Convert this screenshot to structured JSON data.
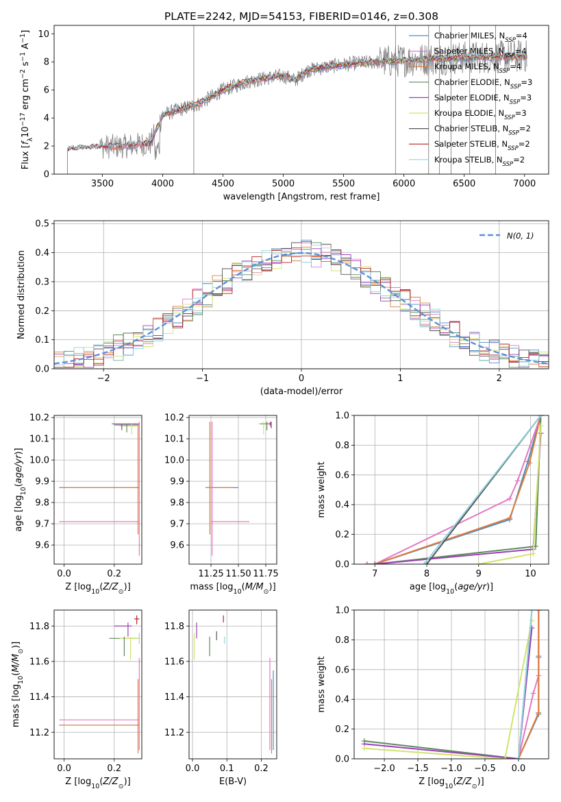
{
  "figure_title": "PLATE=2242, MJD=54153, FIBERID=0146, z=0.308",
  "colors": {
    "Chabrier MILES": "#4a8dbf",
    "Salpeter MILES": "#e377c2",
    "Kroupa MILES": "#e07b39",
    "Chabrier ELODIE": "#5a8a5a",
    "Salpeter ELODIE": "#9b3fb5",
    "Kroupa ELODIE": "#cfe36a",
    "Chabrier STELIB": "#555555",
    "Salpeter STELIB": "#b22222",
    "Kroupa STELIB": "#8fd3e0",
    "data": "#808080",
    "normal": "#5b8fd8"
  },
  "chart_data": [
    {
      "id": "spectrum",
      "type": "line",
      "xlabel": "wavelength [Angstrom, rest frame]",
      "ylabel": "Flux [f_λ 10^-17 erg cm^-2 s^-1 A^-1]",
      "xlim": [
        3100,
        7200
      ],
      "ylim": [
        0,
        10.6
      ],
      "xticks": [
        3500,
        4000,
        4500,
        5000,
        5500,
        6000,
        6500,
        7000
      ],
      "yticks": [
        0,
        2,
        4,
        6,
        8,
        10
      ],
      "legend_position": "upper right",
      "legend": [
        {
          "pre": "Chabrier MILES, N",
          "sub": "SSP",
          "post": "=4"
        },
        {
          "pre": "Salpeter MILES, N",
          "sub": "SSP",
          "post": "=4"
        },
        {
          "pre": "Kroupa MILES, N",
          "sub": "SSP",
          "post": "=4"
        },
        {
          "pre": "Chabrier ELODIE, N",
          "sub": "SSP",
          "post": "=3"
        },
        {
          "pre": "Salpeter ELODIE, N",
          "sub": "SSP",
          "post": "=3"
        },
        {
          "pre": "Kroupa ELODIE, N",
          "sub": "SSP",
          "post": "=3"
        },
        {
          "pre": "Chabrier STELIB, N",
          "sub": "SSP",
          "post": "=2"
        },
        {
          "pre": "Salpeter STELIB, N",
          "sub": "SSP",
          "post": "=2"
        },
        {
          "pre": "Kroupa STELIB, N",
          "sub": "SSP",
          "post": "=2"
        }
      ],
      "continuum_x": [
        3200,
        3350,
        3500,
        3700,
        3900,
        4000,
        4100,
        4300,
        4500,
        4700,
        4900,
        5000,
        5100,
        5200,
        5400,
        5600,
        5800,
        6000,
        6200,
        6500,
        6800,
        7000
      ],
      "continuum_y": [
        1.75,
        1.85,
        1.95,
        2.0,
        2.2,
        4.2,
        4.5,
        5.0,
        6.0,
        6.6,
        6.9,
        7.0,
        6.7,
        7.4,
        7.7,
        7.9,
        8.0,
        8.1,
        8.2,
        8.3,
        8.35,
        8.4
      ]
    },
    {
      "id": "residuals",
      "type": "line",
      "xlabel": "(data-model)/error",
      "ylabel": "Normed distribution",
      "xlim": [
        -2.5,
        2.5
      ],
      "ylim": [
        0,
        0.51
      ],
      "xticks": [
        -2,
        -1,
        0,
        1,
        2
      ],
      "yticks": [
        0.0,
        0.1,
        0.2,
        0.3,
        0.4,
        0.5
      ],
      "bin_width": 0.1,
      "normal_label": "N(0, 1)",
      "normal_sigma": 1.0,
      "legend_position": "upper right"
    },
    {
      "id": "age_vs_Z",
      "type": "scatter",
      "xlabel": "Z [log10(Z/Z⊙)]",
      "ylabel": "age [log10(age/yr)]",
      "xlim": [
        -0.04,
        0.31
      ],
      "ylim": [
        9.51,
        10.21
      ],
      "xticks": [
        0.0,
        0.2
      ],
      "yticks": [
        9.6,
        9.7,
        9.8,
        9.9,
        10.0,
        10.1,
        10.2
      ],
      "hlines": [
        {
          "y": 9.87,
          "x0": -0.02,
          "x1": 0.3,
          "series": "Chabrier MILES"
        },
        {
          "y": 9.87,
          "x0": -0.02,
          "x1": 0.3,
          "series": "Kroupa MILES"
        },
        {
          "y": 9.71,
          "x0": -0.02,
          "x1": 0.3,
          "series": "Salpeter MILES"
        },
        {
          "y": 10.17,
          "x0": 0.19,
          "x1": 0.3,
          "series": "Chabrier ELODIE"
        },
        {
          "y": 10.165,
          "x0": 0.2,
          "x1": 0.3,
          "series": "Salpeter ELODIE"
        },
        {
          "y": 10.16,
          "x0": 0.22,
          "x1": 0.29,
          "series": "Kroupa ELODIE"
        }
      ],
      "vlines": [
        {
          "x": 0.295,
          "y0": 9.65,
          "y1": 10.17,
          "series": "Kroupa MILES"
        },
        {
          "x": 0.3,
          "y0": 9.55,
          "y1": 10.18,
          "series": "Salpeter MILES"
        },
        {
          "x": 0.25,
          "y0": 10.13,
          "y1": 10.17,
          "series": "Chabrier ELODIE"
        },
        {
          "x": 0.27,
          "y0": 10.12,
          "y1": 10.17,
          "series": "Kroupa ELODIE"
        },
        {
          "x": 0.23,
          "y0": 10.14,
          "y1": 10.17,
          "series": "Salpeter ELODIE"
        }
      ]
    },
    {
      "id": "age_vs_mass",
      "type": "scatter",
      "xlabel": "mass [log10(M/M⊙)]",
      "ylabel": "",
      "xlim": [
        11.05,
        11.85
      ],
      "ylim": [
        9.51,
        10.21
      ],
      "xticks": [
        11.25,
        11.5,
        11.75
      ],
      "yticks": [
        9.6,
        9.7,
        9.8,
        9.9,
        10.0,
        10.1,
        10.2
      ],
      "hlines": [
        {
          "y": 9.87,
          "x0": 11.2,
          "x1": 11.5,
          "series": "Chabrier MILES"
        },
        {
          "y": 9.87,
          "x0": 11.2,
          "x1": 11.45,
          "series": "Kroupa MILES"
        },
        {
          "y": 9.71,
          "x0": 11.25,
          "x1": 11.6,
          "series": "Salpeter MILES"
        },
        {
          "y": 10.17,
          "x0": 11.68,
          "x1": 11.8,
          "series": "Kroupa ELODIE"
        },
        {
          "y": 10.17,
          "x0": 11.7,
          "x1": 11.8,
          "series": "Chabrier ELODIE"
        }
      ],
      "vlines": [
        {
          "x": 11.24,
          "y0": 9.65,
          "y1": 10.18,
          "series": "Kroupa MILES"
        },
        {
          "x": 11.26,
          "y0": 9.55,
          "y1": 10.18,
          "series": "Salpeter MILES"
        },
        {
          "x": 11.73,
          "y0": 10.12,
          "y1": 10.18,
          "series": "Kroupa ELODIE"
        },
        {
          "x": 11.76,
          "y0": 10.14,
          "y1": 10.18,
          "series": "Chabrier ELODIE"
        },
        {
          "x": 11.8,
          "y0": 10.15,
          "y1": 10.18,
          "series": "Salpeter STELIB"
        },
        {
          "x": 11.79,
          "y0": 10.16,
          "y1": 10.18,
          "series": "Salpeter ELODIE"
        }
      ]
    },
    {
      "id": "weight_vs_age",
      "type": "line",
      "xlabel": "age [log10(age/yr)]",
      "ylabel": "mass weight",
      "xlim": [
        6.6,
        10.35
      ],
      "ylim": [
        0,
        1.0
      ],
      "xticks": [
        7,
        8,
        9,
        10
      ],
      "yticks": [
        0.0,
        0.2,
        0.4,
        0.6,
        0.8,
        1.0
      ],
      "series": [
        {
          "name": "Chabrier MILES",
          "x": [
            6.85,
            7.0,
            9.6,
            9.95,
            10.2
          ],
          "y": [
            0.0,
            0.0,
            0.3,
            0.69,
            1.0
          ]
        },
        {
          "name": "Salpeter MILES",
          "x": [
            6.85,
            7.0,
            9.6,
            9.75,
            10.2
          ],
          "y": [
            0.0,
            0.0,
            0.44,
            0.56,
            1.0
          ]
        },
        {
          "name": "Kroupa MILES",
          "x": [
            6.85,
            7.0,
            9.6,
            9.98,
            10.2
          ],
          "y": [
            0.0,
            0.0,
            0.31,
            0.68,
            1.0
          ]
        },
        {
          "name": "Chabrier ELODIE",
          "x": [
            7.0,
            10.1,
            10.2
          ],
          "y": [
            0.0,
            0.12,
            1.0
          ]
        },
        {
          "name": "Salpeter ELODIE",
          "x": [
            7.0,
            10.05,
            10.2
          ],
          "y": [
            0.0,
            0.1,
            0.88
          ]
        },
        {
          "name": "Kroupa ELODIE",
          "x": [
            9.0,
            10.05,
            10.2
          ],
          "y": [
            0.0,
            0.07,
            0.93
          ]
        },
        {
          "name": "Chabrier STELIB",
          "x": [
            8.0,
            10.2
          ],
          "y": [
            0.0,
            1.0
          ]
        },
        {
          "name": "Kroupa STELIB",
          "x": [
            7.95,
            10.2
          ],
          "y": [
            0.0,
            1.0
          ]
        }
      ]
    },
    {
      "id": "mass_vs_Z",
      "type": "scatter",
      "xlabel": "Z [log10(Z/Z⊙)]",
      "ylabel": "mass [log10(M/M⊙)]",
      "xlim": [
        -0.04,
        0.31
      ],
      "ylim": [
        11.05,
        11.89
      ],
      "xticks": [
        0.0,
        0.2
      ],
      "yticks": [
        11.2,
        11.4,
        11.6,
        11.8
      ],
      "hlines": [
        {
          "y": 11.24,
          "x0": -0.02,
          "x1": 0.3,
          "series": "Chabrier MILES"
        },
        {
          "y": 11.24,
          "x0": -0.02,
          "x1": 0.3,
          "series": "Kroupa MILES"
        },
        {
          "y": 11.27,
          "x0": -0.02,
          "x1": 0.3,
          "series": "Salpeter MILES"
        },
        {
          "y": 11.73,
          "x0": 0.18,
          "x1": 0.3,
          "series": "Chabrier ELODIE"
        },
        {
          "y": 11.8,
          "x0": 0.2,
          "x1": 0.27,
          "series": "Salpeter ELODIE"
        },
        {
          "y": 11.73,
          "x0": 0.22,
          "x1": 0.3,
          "series": "Kroupa ELODIE"
        },
        {
          "y": 11.84,
          "x0": 0.28,
          "x1": 0.3,
          "series": "Salpeter STELIB"
        }
      ],
      "vlines": [
        {
          "x": 0.295,
          "y0": 11.08,
          "y1": 11.5,
          "series": "Kroupa MILES"
        },
        {
          "x": 0.3,
          "y0": 11.1,
          "y1": 11.62,
          "series": "Salpeter MILES"
        },
        {
          "x": 0.24,
          "y0": 11.63,
          "y1": 11.74,
          "series": "Chabrier ELODIE"
        },
        {
          "x": 0.255,
          "y0": 11.74,
          "y1": 11.82,
          "series": "Salpeter ELODIE"
        },
        {
          "x": 0.265,
          "y0": 11.61,
          "y1": 11.74,
          "series": "Kroupa ELODIE"
        },
        {
          "x": 0.29,
          "y0": 11.81,
          "y1": 11.86,
          "series": "Salpeter STELIB"
        },
        {
          "x": 0.3,
          "y0": 11.7,
          "y1": 11.76,
          "series": "Kroupa STELIB"
        }
      ]
    },
    {
      "id": "mass_vs_EBV",
      "type": "scatter",
      "xlabel": "E(B-V)",
      "ylabel": "",
      "xlim": [
        -0.01,
        0.245
      ],
      "ylim": [
        11.05,
        11.89
      ],
      "xticks": [
        0.0,
        0.1,
        0.2
      ],
      "yticks": [
        11.2,
        11.4,
        11.6,
        11.8
      ],
      "vlines": [
        {
          "x": 0.005,
          "y0": 11.61,
          "y1": 11.76,
          "series": "Kroupa ELODIE"
        },
        {
          "x": 0.012,
          "y0": 11.73,
          "y1": 11.82,
          "series": "Salpeter ELODIE"
        },
        {
          "x": 0.05,
          "y0": 11.63,
          "y1": 11.74,
          "series": "Chabrier ELODIE"
        },
        {
          "x": 0.07,
          "y0": 11.72,
          "y1": 11.77,
          "series": "Chabrier STELIB"
        },
        {
          "x": 0.09,
          "y0": 11.82,
          "y1": 11.86,
          "series": "Salpeter STELIB"
        },
        {
          "x": 0.093,
          "y0": 11.7,
          "y1": 11.74,
          "series": "Kroupa STELIB"
        },
        {
          "x": 0.225,
          "y0": 11.1,
          "y1": 11.62,
          "series": "Salpeter MILES"
        },
        {
          "x": 0.23,
          "y0": 11.08,
          "y1": 11.5,
          "series": "Kroupa MILES"
        },
        {
          "x": 0.235,
          "y0": 11.1,
          "y1": 11.55,
          "series": "Chabrier MILES"
        }
      ]
    },
    {
      "id": "weight_vs_Z",
      "type": "line",
      "xlabel": "Z [log10(Z/Z⊙)]",
      "ylabel": "mass weight",
      "xlim": [
        -2.45,
        0.45
      ],
      "ylim": [
        0,
        1.0
      ],
      "xticks": [
        -2.0,
        -1.5,
        -1.0,
        -0.5,
        0.0
      ],
      "yticks": [
        0.0,
        0.2,
        0.4,
        0.6,
        0.8,
        1.0
      ],
      "series": [
        {
          "name": "Chabrier MILES",
          "x": [
            0.0,
            0.3,
            0.3,
            0.3
          ],
          "y": [
            0.0,
            0.3,
            0.69,
            1.0
          ]
        },
        {
          "name": "Salpeter MILES",
          "x": [
            0.0,
            0.22,
            0.3,
            0.3
          ],
          "y": [
            0.0,
            0.44,
            0.56,
            1.0
          ]
        },
        {
          "name": "Kroupa MILES",
          "x": [
            0.0,
            0.3,
            0.3,
            0.3
          ],
          "y": [
            0.0,
            0.31,
            0.68,
            1.0
          ]
        },
        {
          "name": "Chabrier ELODIE",
          "x": [
            -2.3,
            0.0,
            0.2
          ],
          "y": [
            0.12,
            0.0,
            1.0
          ]
        },
        {
          "name": "Salpeter ELODIE",
          "x": [
            -2.3,
            0.0,
            0.2
          ],
          "y": [
            0.1,
            0.0,
            0.88
          ]
        },
        {
          "name": "Kroupa ELODIE",
          "x": [
            -2.3,
            -0.2,
            0.2
          ],
          "y": [
            0.07,
            0.0,
            0.93
          ]
        },
        {
          "name": "Kroupa STELIB",
          "x": [
            0.0,
            0.2
          ],
          "y": [
            0.0,
            1.0
          ]
        }
      ]
    }
  ]
}
